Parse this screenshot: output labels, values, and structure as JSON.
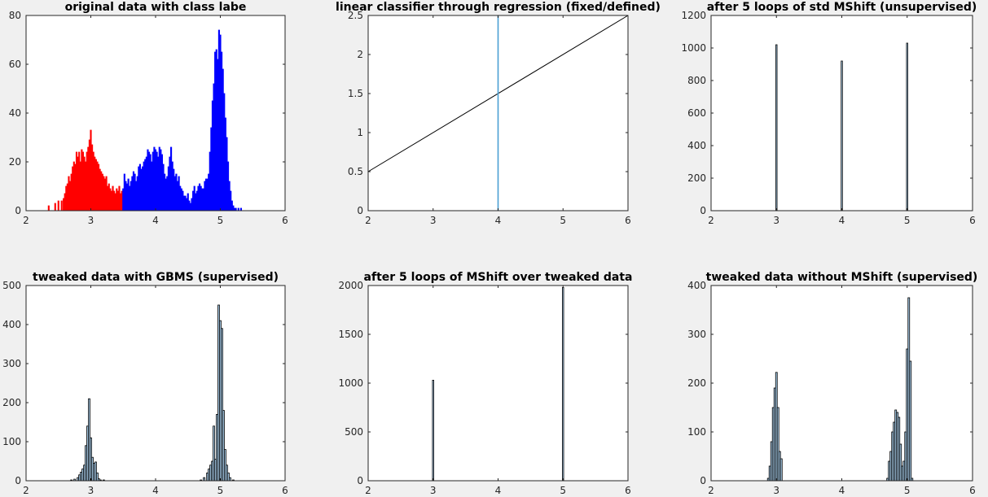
{
  "figure": {
    "background": "#f0f0f0"
  },
  "colors": {
    "red": "#ff0000",
    "blue": "#0000ff",
    "lightblue": "#a6cae6",
    "vline": "#4aa0d4",
    "edge": "#000000"
  },
  "chart_data": [
    {
      "type": "bar",
      "title": "original data with class labe",
      "xlim": [
        2,
        6
      ],
      "ylim": [
        0,
        80
      ],
      "xticks": [
        2,
        3,
        4,
        5,
        6
      ],
      "yticks": [
        0,
        20,
        40,
        60,
        80
      ],
      "bin_width": 0.0167,
      "series": [
        {
          "color": "red",
          "x": [
            2.35,
            2.45,
            2.5,
            2.55,
            2.58,
            2.6,
            2.62,
            2.64,
            2.66,
            2.68,
            2.7,
            2.72,
            2.74,
            2.76,
            2.78,
            2.8,
            2.82,
            2.84,
            2.86,
            2.88,
            2.9,
            2.92,
            2.94,
            2.96,
            2.98,
            3.0,
            3.02,
            3.04,
            3.06,
            3.08,
            3.1,
            3.12,
            3.14,
            3.16,
            3.18,
            3.2,
            3.22,
            3.24,
            3.26,
            3.28,
            3.3,
            3.32,
            3.34,
            3.36,
            3.38,
            3.4,
            3.42,
            3.44,
            3.46,
            3.48
          ],
          "values": [
            2,
            3,
            4,
            4,
            5,
            7,
            10,
            11,
            14,
            12,
            15,
            18,
            20,
            19,
            24,
            22,
            24,
            20,
            25,
            24,
            22,
            20,
            24,
            26,
            29,
            33,
            27,
            24,
            22,
            21,
            20,
            19,
            17,
            16,
            15,
            14,
            13,
            14,
            10,
            11,
            9,
            8,
            10,
            8,
            7,
            9,
            8,
            10,
            7,
            8
          ]
        },
        {
          "color": "blue",
          "x": [
            3.5,
            3.52,
            3.54,
            3.56,
            3.58,
            3.6,
            3.62,
            3.64,
            3.66,
            3.68,
            3.7,
            3.72,
            3.74,
            3.76,
            3.78,
            3.8,
            3.82,
            3.84,
            3.86,
            3.88,
            3.9,
            3.92,
            3.94,
            3.96,
            3.98,
            4.0,
            4.02,
            4.04,
            4.06,
            4.08,
            4.1,
            4.12,
            4.14,
            4.16,
            4.18,
            4.2,
            4.22,
            4.24,
            4.26,
            4.28,
            4.3,
            4.32,
            4.34,
            4.36,
            4.38,
            4.4,
            4.42,
            4.44,
            4.46,
            4.48,
            4.5,
            4.52,
            4.54,
            4.56,
            4.58,
            4.6,
            4.62,
            4.64,
            4.66,
            4.68,
            4.7,
            4.72,
            4.74,
            4.76,
            4.78,
            4.8,
            4.82,
            4.84,
            4.86,
            4.88,
            4.9,
            4.92,
            4.94,
            4.96,
            4.98,
            5.0,
            5.02,
            5.04,
            5.06,
            5.08,
            5.1,
            5.12,
            5.14,
            5.16,
            5.18,
            5.2,
            5.22,
            5.24,
            5.28,
            5.32
          ],
          "values": [
            9,
            15,
            12,
            11,
            13,
            10,
            12,
            14,
            16,
            15,
            12,
            14,
            18,
            19,
            17,
            18,
            20,
            21,
            22,
            25,
            24,
            23,
            20,
            24,
            26,
            25,
            24,
            22,
            26,
            25,
            23,
            19,
            15,
            13,
            14,
            18,
            22,
            26,
            20,
            17,
            14,
            15,
            12,
            14,
            10,
            9,
            8,
            6,
            6,
            5,
            7,
            4,
            3,
            5,
            8,
            10,
            7,
            8,
            10,
            11,
            10,
            9,
            9,
            12,
            13,
            13,
            15,
            24,
            34,
            45,
            52,
            65,
            66,
            62,
            74,
            72,
            65,
            58,
            48,
            38,
            30,
            20,
            12,
            8,
            4,
            2,
            1,
            1,
            1,
            1
          ]
        }
      ]
    },
    {
      "type": "line",
      "title": "linear classifier through regression (fixed/defined)",
      "xlim": [
        2,
        6
      ],
      "ylim": [
        0,
        2.5
      ],
      "xticks": [
        2,
        3,
        4,
        5,
        6
      ],
      "yticks": [
        0,
        0.5,
        1,
        1.5,
        2,
        2.5
      ],
      "xtick_labels": [
        "2",
        "3",
        "4",
        "5",
        "6"
      ],
      "ytick_labels": [
        "0",
        "0.5",
        "1",
        "1.5",
        "2",
        "2.5"
      ],
      "series": [
        {
          "color": "edge",
          "x": [
            2,
            6
          ],
          "y": [
            0.5,
            2.5
          ]
        },
        {
          "color": "vline",
          "x": [
            4,
            4
          ],
          "y": [
            0,
            2.5
          ]
        }
      ]
    },
    {
      "type": "bar",
      "title": "after 5 loops of std MShift (unsupervised)",
      "xlim": [
        2,
        6
      ],
      "ylim": [
        0,
        1200
      ],
      "xticks": [
        2,
        3,
        4,
        5,
        6
      ],
      "yticks": [
        0,
        200,
        400,
        600,
        800,
        1000,
        1200
      ],
      "bin_width": 0.02,
      "series": [
        {
          "color": "lightblue",
          "x": [
            3.0,
            4.0,
            5.0
          ],
          "values": [
            1020,
            920,
            1030
          ]
        }
      ]
    },
    {
      "type": "bar",
      "title": "tweaked data with GBMS (supervised)",
      "xlim": [
        2,
        6
      ],
      "ylim": [
        0,
        500
      ],
      "xticks": [
        2,
        3,
        4,
        5,
        6
      ],
      "yticks": [
        0,
        100,
        200,
        300,
        400,
        500
      ],
      "bin_width": 0.025,
      "series": [
        {
          "color": "lightblue",
          "x": [
            2.7,
            2.75,
            2.8,
            2.825,
            2.85,
            2.875,
            2.9,
            2.925,
            2.95,
            2.975,
            3.0,
            3.025,
            3.05,
            3.075,
            3.1,
            3.125,
            3.15,
            3.2,
            4.7,
            4.75,
            4.8,
            4.825,
            4.85,
            4.875,
            4.9,
            4.925,
            4.95,
            4.975,
            5.0,
            5.025,
            5.05,
            5.075,
            5.1,
            5.125,
            5.15,
            5.2
          ],
          "values": [
            2,
            4,
            8,
            15,
            22,
            30,
            40,
            90,
            140,
            210,
            110,
            60,
            45,
            48,
            20,
            5,
            2,
            2,
            2,
            8,
            20,
            30,
            40,
            50,
            140,
            55,
            170,
            450,
            410,
            390,
            180,
            80,
            40,
            20,
            8,
            2
          ]
        }
      ]
    },
    {
      "type": "bar",
      "title": "after 5 loops of MShift over tweaked data",
      "xlim": [
        2,
        6
      ],
      "ylim": [
        0,
        2000
      ],
      "xticks": [
        2,
        3,
        4,
        5,
        6
      ],
      "yticks": [
        0,
        500,
        1000,
        1500,
        2000
      ],
      "bin_width": 0.02,
      "series": [
        {
          "color": "lightblue",
          "x": [
            3.0,
            5.0
          ],
          "values": [
            1030,
            1980
          ]
        }
      ]
    },
    {
      "type": "bar",
      "title": "tweaked data without MShift (supervised)",
      "xlim": [
        2,
        6
      ],
      "ylim": [
        0,
        400
      ],
      "xticks": [
        2,
        3,
        4,
        5,
        6
      ],
      "yticks": [
        0,
        100,
        200,
        300,
        400
      ],
      "bin_width": 0.025,
      "series": [
        {
          "color": "lightblue",
          "x": [
            2.875,
            2.9,
            2.925,
            2.95,
            2.975,
            3.0,
            3.025,
            3.05,
            3.075,
            4.7,
            4.725,
            4.75,
            4.775,
            4.8,
            4.825,
            4.85,
            4.875,
            4.9,
            4.925,
            4.95,
            4.975,
            5.0,
            5.025,
            5.05,
            5.075
          ],
          "values": [
            5,
            30,
            80,
            150,
            190,
            222,
            150,
            60,
            45,
            5,
            40,
            60,
            100,
            120,
            145,
            140,
            130,
            75,
            30,
            40,
            100,
            270,
            375,
            245,
            5
          ]
        }
      ]
    }
  ]
}
